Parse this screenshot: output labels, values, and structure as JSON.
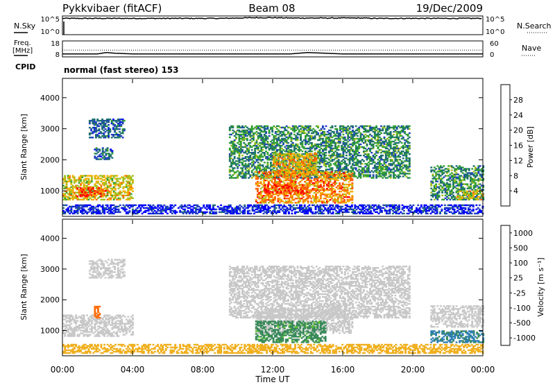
{
  "header": {
    "station": "Pykkvibaer (fitACF)",
    "beam": "Beam 08",
    "date": "19/Dec/2009"
  },
  "chart_data": [
    {
      "panel": "nsky-nsearch",
      "type": "line",
      "left_label": "N.Sky",
      "right_label": "N.Search",
      "left_ticks": [
        "10^5",
        "10^0"
      ],
      "right_ticks": [
        "10^5",
        "10^0"
      ],
      "series": [
        {
          "name": "N.Sky",
          "x": [
            0,
            1,
            2,
            3,
            4,
            5,
            6,
            7,
            8,
            9,
            10,
            11,
            12,
            13,
            14,
            15,
            16,
            17,
            18,
            19,
            20,
            21,
            22,
            23,
            24
          ],
          "y_log10": [
            4.5,
            4.5,
            4.5,
            4.5,
            4.5,
            4.5,
            4.5,
            4.5,
            4.5,
            4.5,
            4.6,
            4.7,
            4.7,
            4.6,
            4.6,
            4.6,
            4.6,
            4.6,
            4.5,
            4.5,
            4.5,
            4.5,
            4.5,
            4.5,
            4.5
          ]
        }
      ]
    },
    {
      "panel": "freq-nave",
      "type": "line",
      "left_label_top": "Freq.",
      "left_label_bottom": "[MHz]",
      "right_label": "Nave",
      "left_ticks": [
        "18",
        "8"
      ],
      "right_ticks": [
        "60",
        "0"
      ],
      "series": [
        {
          "name": "Freq.",
          "x": [
            0,
            2,
            2.5,
            3,
            4,
            8,
            12,
            13,
            14,
            16,
            20,
            24
          ],
          "y": [
            9.5,
            9.5,
            10.5,
            10.0,
            9.5,
            9.5,
            9.5,
            9.5,
            10.5,
            9.5,
            9.5,
            9.5
          ]
        },
        {
          "name": "Nave",
          "x": [
            0,
            24
          ],
          "y": [
            25,
            25
          ]
        }
      ]
    },
    {
      "panel": "cpid",
      "type": "table",
      "label": "CPID",
      "value": "normal (fast stereo) 153"
    },
    {
      "panel": "power",
      "type": "heatmap",
      "ylabel": "Slant Range [km]",
      "y_ticks": [
        "4000",
        "3000",
        "2000",
        "1000"
      ],
      "ylim": [
        200,
        4600
      ],
      "xlim": [
        0,
        24
      ],
      "colorbar_label": "Power [dB]",
      "colorbar_ticks": [
        "28",
        "24",
        "20",
        "16",
        "12",
        "8",
        "4"
      ],
      "colorbar_range": [
        0,
        32
      ],
      "colors": [
        "#0000ff",
        "#2040c0",
        "#1e6f6f",
        "#33a033",
        "#a0c020",
        "#f0b000",
        "#ff6000",
        "#ff0000"
      ],
      "patches": [
        {
          "t": [
            0.0,
            4.0
          ],
          "r": [
            700,
            1500
          ],
          "v": 20
        },
        {
          "t": [
            0.8,
            2.5
          ],
          "r": [
            800,
            1100
          ],
          "v": 28
        },
        {
          "t": [
            1.5,
            3.5
          ],
          "r": [
            2700,
            3300
          ],
          "v": 8
        },
        {
          "t": [
            1.8,
            2.8
          ],
          "r": [
            2000,
            2400
          ],
          "v": 8
        },
        {
          "t": [
            9.5,
            19.8
          ],
          "r": [
            1400,
            3100
          ],
          "v": 12
        },
        {
          "t": [
            11.0,
            16.5
          ],
          "r": [
            600,
            1600
          ],
          "v": 24
        },
        {
          "t": [
            12.0,
            14.5
          ],
          "r": [
            1500,
            2200
          ],
          "v": 22
        },
        {
          "t": [
            11.5,
            14.0
          ],
          "r": [
            900,
            1200
          ],
          "v": 28
        },
        {
          "t": [
            21.0,
            24.0
          ],
          "r": [
            700,
            1800
          ],
          "v": 12
        },
        {
          "t": [
            22.5,
            24.0
          ],
          "r": [
            700,
            1000
          ],
          "v": 20
        },
        {
          "t": [
            0.0,
            24.0
          ],
          "r": [
            250,
            550
          ],
          "v": 4
        }
      ]
    },
    {
      "panel": "velocity",
      "type": "heatmap",
      "ylabel": "Slant Range [km]",
      "y_ticks": [
        "4000",
        "3000",
        "2000",
        "1000"
      ],
      "ylim": [
        200,
        4600
      ],
      "xlim": [
        0,
        24
      ],
      "colorbar_label": "Velocity [m s⁻¹]",
      "colorbar_ticks": [
        "1000",
        "500",
        "100",
        "25",
        "-25",
        "-100",
        "-500",
        "-1000"
      ],
      "colors": [
        "#2c3ea8",
        "#2e7fb4",
        "#3a8a5a",
        "#66cc33",
        "#c8c8c8",
        "#f0b020",
        "#ff7010",
        "#ff0000"
      ],
      "patches": [
        {
          "t": [
            0.0,
            4.0
          ],
          "r": [
            800,
            1500
          ],
          "v": 0
        },
        {
          "t": [
            1.5,
            3.5
          ],
          "r": [
            2700,
            3300
          ],
          "v": 0
        },
        {
          "t": [
            1.8,
            2.1
          ],
          "r": [
            1400,
            1800
          ],
          "v": -300
        },
        {
          "t": [
            9.5,
            19.8
          ],
          "r": [
            1400,
            3100
          ],
          "v": 0
        },
        {
          "t": [
            11.0,
            16.5
          ],
          "r": [
            900,
            1700
          ],
          "v": 0
        },
        {
          "t": [
            11.0,
            15.0
          ],
          "r": [
            600,
            1300
          ],
          "v": 90
        },
        {
          "t": [
            21.0,
            24.0
          ],
          "r": [
            1100,
            1800
          ],
          "v": 0
        },
        {
          "t": [
            21.0,
            24.0
          ],
          "r": [
            600,
            1000
          ],
          "v": 300
        },
        {
          "t": [
            0.0,
            24.0
          ],
          "r": [
            250,
            550
          ],
          "v": -60
        }
      ]
    }
  ],
  "time_axis": {
    "label": "Time UT",
    "ticks": [
      "00:00",
      "04:00",
      "08:00",
      "12:00",
      "16:00",
      "20:00",
      "00:00"
    ],
    "tick_hours": [
      0,
      4,
      8,
      12,
      16,
      20,
      24
    ]
  }
}
